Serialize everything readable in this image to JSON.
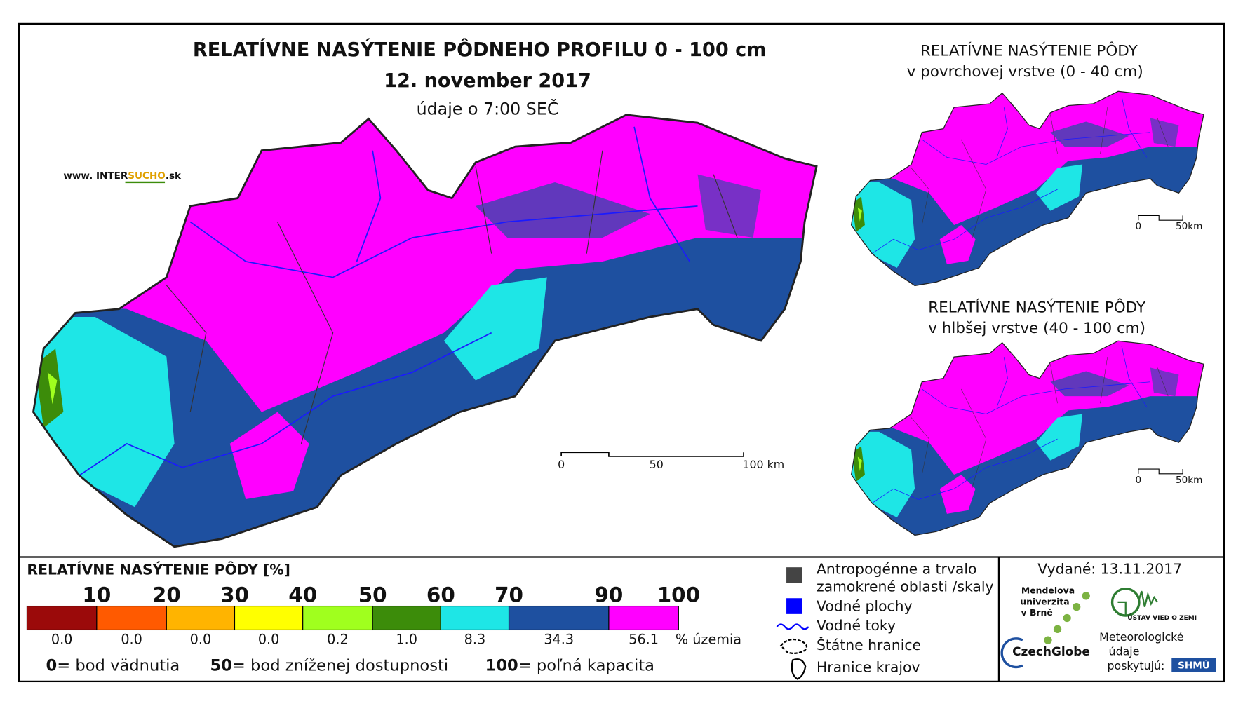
{
  "header": {
    "title": "RELATÍVNE NASÝTENIE PÔDNEHO PROFILU 0 - 100 cm",
    "date": "12. november 2017",
    "note": "údaje o 7:00 SEČ",
    "website": {
      "prefix": "www. INTER",
      "highlight": "SUCHO",
      "suffix": ".sk"
    }
  },
  "main_map": {
    "scale": [
      "0",
      "50",
      "100 km"
    ]
  },
  "surface_map": {
    "title": [
      "RELATÍVNE NASÝTENIE PÔDY",
      "v povrchovej vrstve (0 - 40 cm)"
    ],
    "scale": [
      "0",
      "50km"
    ]
  },
  "deep_map": {
    "title": [
      "RELATÍVNE NASÝTENIE PÔDY",
      "v hlbšej vrstve (40 - 100 cm)"
    ],
    "scale": [
      "0",
      "50km"
    ]
  },
  "legend": {
    "title": "RELATÍVNE NASÝTENIE PÔDY [%]",
    "classes": [
      {
        "upper": 10,
        "color": "#9b0a0a",
        "share": "0.0"
      },
      {
        "upper": 20,
        "color": "#ff5a00",
        "share": "0.0"
      },
      {
        "upper": 30,
        "color": "#ffb400",
        "share": "0.0"
      },
      {
        "upper": 40,
        "color": "#ffff00",
        "share": "0.0"
      },
      {
        "upper": 50,
        "color": "#a0ff1e",
        "share": "0.2"
      },
      {
        "upper": 60,
        "color": "#3c8c0a",
        "share": "1.0"
      },
      {
        "upper": 70,
        "color": "#1ee6e6",
        "share": "8.3"
      },
      {
        "upper": 90,
        "color": "#1e50a0",
        "share": "34.3"
      },
      {
        "upper": 100,
        "color": "#ff00ff",
        "share": "56.1"
      }
    ],
    "unit": "% územia",
    "notes": [
      {
        "value": "0",
        "text": "= bod vädnutia"
      },
      {
        "value": "50",
        "text": "= bod zníženej dostupnosti"
      },
      {
        "value": "100",
        "text": "= poľná kapacita"
      }
    ],
    "items": [
      "Antropogénne a trvalo",
      "zamokrené oblasti /skaly",
      "Vodné plochy",
      "Vodné toky",
      "Štátne hranice",
      "Hranice krajov"
    ]
  },
  "footer": {
    "issued": "Vydané: 13.11.2017",
    "mendel": [
      "Mendelova",
      "univerzita",
      "v Brně"
    ],
    "czechglobe": "CzechGlobe",
    "uvz": "ÚSTAV VIED O ZEMI",
    "meteo": [
      "Meteorologické",
      "údaje",
      "poskytujú:"
    ],
    "shmu": "SHMÚ"
  }
}
